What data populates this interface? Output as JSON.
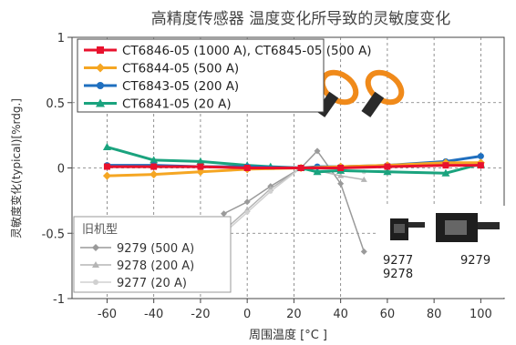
{
  "chart_data": {
    "type": "line",
    "title": "高精度传感器 温度变化所导致的灵敏度变化",
    "xlabel": "周围温度 [°C ]",
    "ylabel": "灵敏度变化(typical)[%rdg.]",
    "xlim": [
      -75,
      110
    ],
    "ylim": [
      -1,
      1
    ],
    "xticks": [
      -60,
      -40,
      -20,
      0,
      20,
      40,
      60,
      80,
      100
    ],
    "yticks": [
      1,
      0.5,
      0,
      -0.5,
      -1
    ],
    "xtick_labels": [
      "-60",
      "-40",
      "-20",
      "0",
      "20",
      "40",
      "60",
      "80",
      "100"
    ],
    "ytick_labels": [
      "1",
      "0.5",
      "0",
      "-0.5",
      "-1"
    ],
    "grid": "dashed",
    "legend_position": "top-left",
    "series": [
      {
        "name": "CT6846-05 (1000 A), CT6845-05 (500 A)",
        "color": "#e8112d",
        "marker": "square",
        "x": [
          -60,
          -40,
          -20,
          0,
          23,
          40,
          60,
          85,
          100
        ],
        "y": [
          0.01,
          0.01,
          0.01,
          0.0,
          0.0,
          0.0,
          0.01,
          0.02,
          0.02
        ]
      },
      {
        "name": "CT6844-05 (500 A)",
        "color": "#f5a623",
        "marker": "diamond",
        "x": [
          -60,
          -40,
          -20,
          0,
          23,
          40,
          60,
          85,
          100
        ],
        "y": [
          -0.06,
          -0.05,
          -0.03,
          -0.01,
          0.0,
          0.01,
          0.02,
          0.04,
          0.04
        ]
      },
      {
        "name": "CT6843-05 (200 A)",
        "color": "#1f6fbf",
        "marker": "circle",
        "x": [
          -60,
          -40,
          -20,
          0,
          23,
          30,
          40,
          60,
          85,
          100
        ],
        "y": [
          0.02,
          0.02,
          0.01,
          0.01,
          0.0,
          0.01,
          0.01,
          0.02,
          0.05,
          0.09
        ]
      },
      {
        "name": "CT6841-05 (20 A)",
        "color": "#1aa37e",
        "marker": "triangle",
        "x": [
          -60,
          -40,
          -20,
          0,
          10,
          23,
          30,
          40,
          60,
          85,
          100
        ],
        "y": [
          0.16,
          0.06,
          0.05,
          0.02,
          0.01,
          0.0,
          -0.03,
          -0.02,
          -0.03,
          -0.04,
          0.03
        ]
      }
    ],
    "legacy_legend_title": "旧机型",
    "legacy_series": [
      {
        "name": "9279 (500 A)",
        "color": "#9a9a9a",
        "marker": "diamond",
        "x": [
          -10,
          0,
          10,
          23,
          30,
          40,
          50
        ],
        "y": [
          -0.35,
          -0.26,
          -0.14,
          0.0,
          0.13,
          -0.12,
          -0.64
        ]
      },
      {
        "name": "9278 (200 A)",
        "color": "#b5b5b5",
        "marker": "triangle",
        "x": [
          -10,
          0,
          10,
          23,
          30,
          40,
          50
        ],
        "y": [
          -0.48,
          -0.32,
          -0.16,
          0.0,
          -0.02,
          -0.06,
          -0.09
        ]
      },
      {
        "name": "9277 (20 A)",
        "color": "#d0d0d0",
        "marker": "circle",
        "x": [
          -10,
          0,
          10,
          23,
          30,
          40,
          50
        ],
        "y": [
          -0.5,
          -0.34,
          -0.18,
          0.0,
          -0.01,
          -0.02,
          -0.03
        ]
      }
    ],
    "photo_labels": [
      "9277",
      "9278",
      "9279"
    ]
  }
}
